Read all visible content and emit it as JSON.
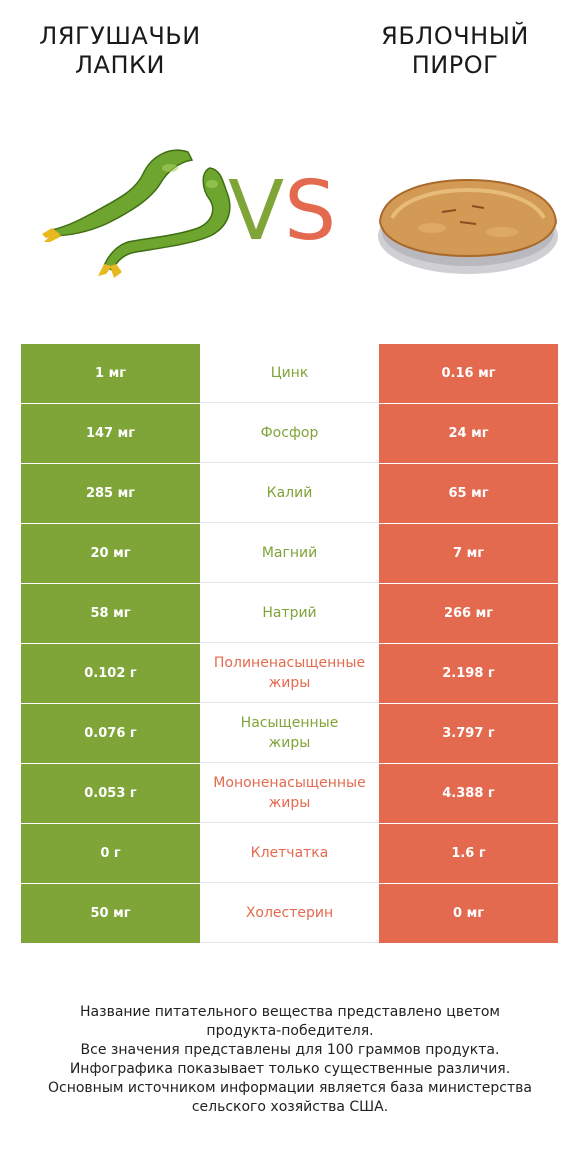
{
  "header": {
    "left_title_line1": "ЛЯГУШАЧЬИ",
    "left_title_line2": "ЛАПКИ",
    "right_title_line1": "ЯБЛОЧНЫЙ",
    "right_title_line2": "ПИРОГ",
    "vs_v": "V",
    "vs_s": "S"
  },
  "colors": {
    "left_product": "#7fa437",
    "right_product": "#e46a4f"
  },
  "icons": {
    "left_image": "frog-legs-icon",
    "right_image": "apple-pie-icon"
  },
  "rows": [
    {
      "left": "1 мг",
      "nutrient": "Цинк",
      "right": "0.16 мг",
      "winner": "left"
    },
    {
      "left": "147 мг",
      "nutrient": "Фосфор",
      "right": "24 мг",
      "winner": "left"
    },
    {
      "left": "285 мг",
      "nutrient": "Калий",
      "right": "65 мг",
      "winner": "left"
    },
    {
      "left": "20 мг",
      "nutrient": "Магний",
      "right": "7 мг",
      "winner": "left"
    },
    {
      "left": "58 мг",
      "nutrient": "Натрий",
      "right": "266 мг",
      "winner": "left"
    },
    {
      "left": "0.102 г",
      "nutrient": "Полиненасыщенные\nжиры",
      "right": "2.198 г",
      "winner": "right"
    },
    {
      "left": "0.076 г",
      "nutrient": "Насыщенные\nжиры",
      "right": "3.797 г",
      "winner": "left"
    },
    {
      "left": "0.053 г",
      "nutrient": "Мононенасыщенные\nжиры",
      "right": "4.388 г",
      "winner": "right"
    },
    {
      "left": "0 г",
      "nutrient": "Клетчатка",
      "right": "1.6 г",
      "winner": "right"
    },
    {
      "left": "50 мг",
      "nutrient": "Холестерин",
      "right": "0 мг",
      "winner": "right"
    }
  ],
  "footer": {
    "line1": "Название питательного вещества представлено цветом",
    "line2": "продукта-победителя.",
    "line3": "Все значения представлены для 100 граммов продукта.",
    "line4": "Инфографика показывает только существенные различия.",
    "line5": "Основным источником информации является база министерства",
    "line6": "сельского хозяйства США."
  }
}
